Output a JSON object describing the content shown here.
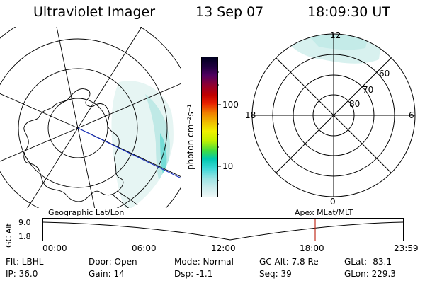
{
  "header": {
    "instrument": "Ultraviolet Imager",
    "date": "13 Sep 07",
    "time": "18:09:30 UT"
  },
  "colorbar": {
    "unit_label": "photon cm⁻²s⁻¹",
    "tick_labels": [
      "100",
      "10"
    ],
    "colors": [
      "#eef8f8",
      "#c8ecec",
      "#9ce4e4",
      "#40d8d8",
      "#00c8b0",
      "#40dc40",
      "#c0f000",
      "#f0f000",
      "#f0c000",
      "#f08000",
      "#e82000",
      "#c00000",
      "#900030",
      "#500060",
      "#200040",
      "#000020"
    ]
  },
  "geo_map": {
    "label": "Geographic Lat/Lon"
  },
  "mlt_dial": {
    "label": "Apex  MLat/MLT",
    "mlt_labels": [
      "12",
      "18",
      "6",
      "0"
    ],
    "lat_labels": [
      "60",
      "70",
      "80"
    ]
  },
  "alt_plot": {
    "ylabel": "GC Alt",
    "yticks": [
      "9.0",
      "1.8"
    ],
    "xticks": [
      "00:00",
      "06:00",
      "12:00",
      "18:00",
      "23:59"
    ],
    "marker_time": "18:09",
    "marker_color": "#c03020"
  },
  "info": {
    "flt": "Flt: LBHL",
    "ip": "IP: 36.0",
    "door": "Door: Open",
    "gain": "Gain: 14",
    "mode": "Mode: Normal",
    "dsp": "Dsp:    -1.1",
    "gc_alt": "GC Alt: 7.8 Re",
    "seq": "Seq: 39",
    "glat": "GLat: -83.1",
    "glon": "GLon: 229.3"
  }
}
